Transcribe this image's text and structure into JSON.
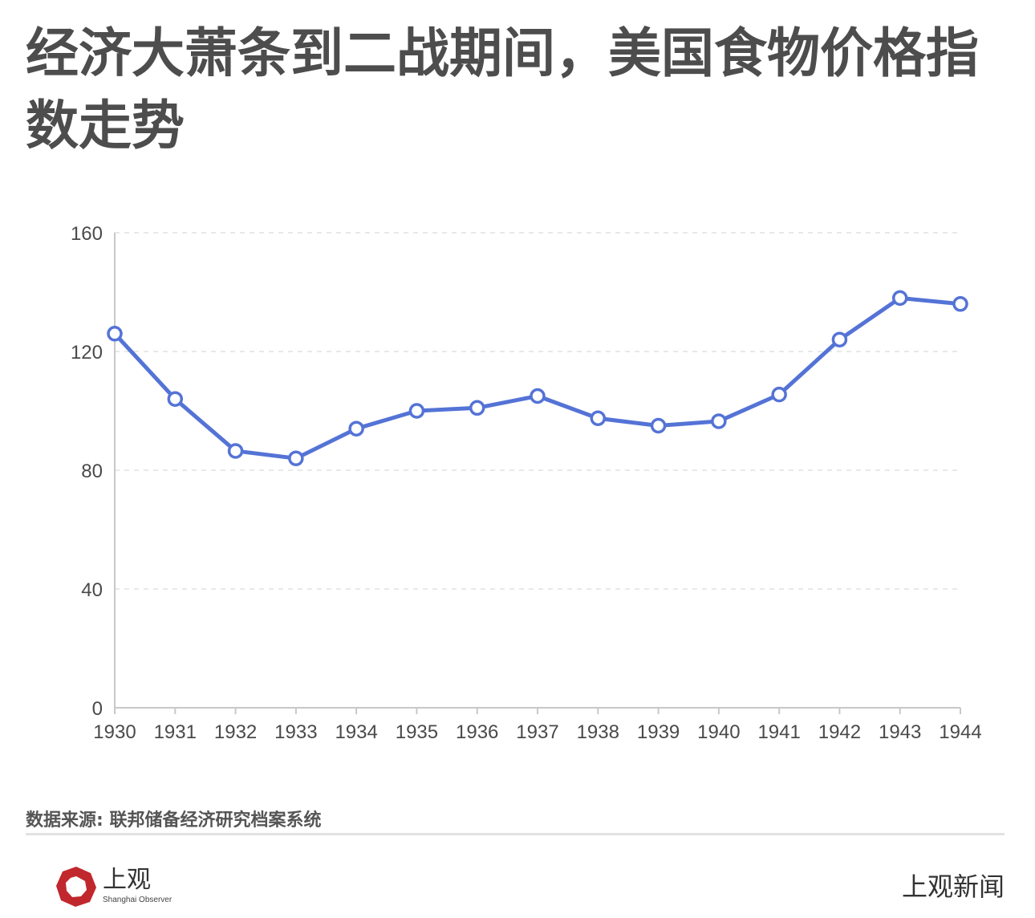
{
  "title": "经济大萧条到二战期间，美国食物价格指数走势",
  "source": "数据来源: 联邦储备经济研究档案系统",
  "logo": {
    "text": "上观",
    "subtext": "Shanghai Observer"
  },
  "brand_right": "上观新闻",
  "colors": {
    "line": "#5473d6",
    "axis": "#c8c8c8",
    "grid": "#e0e0e0",
    "logo_red": "#c0282d"
  },
  "chart_data": {
    "type": "line",
    "x": [
      "1930",
      "1931",
      "1932",
      "1933",
      "1934",
      "1935",
      "1936",
      "1937",
      "1938",
      "1939",
      "1940",
      "1941",
      "1942",
      "1943",
      "1944"
    ],
    "series": [
      {
        "values": [
          126,
          104,
          86.5,
          84,
          94,
          100,
          101,
          105,
          97.5,
          95,
          96.5,
          105.5,
          124,
          138,
          136
        ]
      }
    ],
    "ylim": [
      0,
      160
    ],
    "yticks": [
      "0",
      "40",
      "80",
      "120",
      "160"
    ],
    "grid": true
  }
}
